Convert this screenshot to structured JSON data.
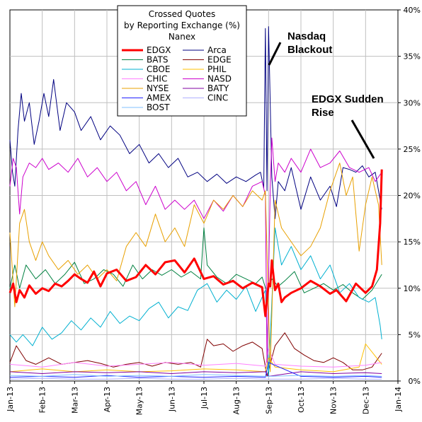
{
  "chart_data": {
    "type": "line",
    "title": [
      "Crossed Quotes",
      "by Reporting Exchange (%)",
      "Nanex"
    ],
    "ylim": [
      0,
      40
    ],
    "y_ticks": [
      "0%",
      "5%",
      "10%",
      "15%",
      "20%",
      "25%",
      "30%",
      "35%",
      "40%"
    ],
    "y_axis_side": "right",
    "x_ticks": [
      "Jan-13",
      "Feb-13",
      "Mar-13",
      "Apr-13",
      "May-13",
      "Jun-13",
      "Jul-13",
      "Aug-13",
      "Sep-13",
      "Oct-13",
      "Nov-13",
      "Dec-13",
      "Jan-14"
    ],
    "grid": true,
    "legend_placement": "top-center",
    "annotations": [
      {
        "lines": [
          "Nasdaq",
          "Blackout"
        ],
        "x": 8.15,
        "y": 38.5
      },
      {
        "lines": [
          "EDGX Sudden",
          "Rise"
        ],
        "x": 10.95,
        "y": 29.5
      }
    ],
    "series": [
      {
        "name": "EDGX",
        "color": "#ff0000",
        "width": 3,
        "x": [
          0,
          0.1,
          0.2,
          0.3,
          0.45,
          0.6,
          0.8,
          1.0,
          1.2,
          1.4,
          1.6,
          1.8,
          2.0,
          2.2,
          2.4,
          2.6,
          2.8,
          3.0,
          3.3,
          3.6,
          3.9,
          4.2,
          4.5,
          4.8,
          5.1,
          5.4,
          5.7,
          6.0,
          6.3,
          6.6,
          6.9,
          7.2,
          7.5,
          7.8,
          7.9,
          8.0,
          8.05,
          8.1,
          8.2,
          8.3,
          8.4,
          8.5,
          8.7,
          9.0,
          9.3,
          9.6,
          9.9,
          10.1,
          10.4,
          10.7,
          11.0,
          11.2,
          11.35,
          11.45,
          11.5
        ],
        "y": [
          9.5,
          10.5,
          8.5,
          9.8,
          9.0,
          10.3,
          9.4,
          10.0,
          9.7,
          10.5,
          10.2,
          10.8,
          11.5,
          11.0,
          10.6,
          11.8,
          10.2,
          11.6,
          12.0,
          10.8,
          11.2,
          12.5,
          11.5,
          12.8,
          13.0,
          11.7,
          13.2,
          11.0,
          11.3,
          10.4,
          10.8,
          10.0,
          10.6,
          10.1,
          7.0,
          10.5,
          10.2,
          13.0,
          9.8,
          10.5,
          8.5,
          9.0,
          9.5,
          10.0,
          10.8,
          10.2,
          9.4,
          9.8,
          8.6,
          10.5,
          9.5,
          10.2,
          12.0,
          17.0,
          22.8
        ]
      },
      {
        "name": "Arca",
        "color": "#000080",
        "width": 1,
        "x": [
          0,
          0.08,
          0.15,
          0.25,
          0.35,
          0.45,
          0.6,
          0.75,
          0.9,
          1.05,
          1.2,
          1.35,
          1.55,
          1.75,
          2.0,
          2.2,
          2.5,
          2.8,
          3.1,
          3.4,
          3.7,
          4.0,
          4.3,
          4.6,
          4.9,
          5.2,
          5.5,
          5.8,
          6.1,
          6.4,
          6.7,
          7.0,
          7.3,
          7.6,
          7.75,
          7.85,
          7.9,
          7.95,
          8.0,
          8.1,
          8.2,
          8.3,
          8.5,
          8.7,
          9.0,
          9.3,
          9.6,
          9.9,
          10.1,
          10.3,
          10.5,
          10.7,
          10.9,
          11.1,
          11.3,
          11.5
        ],
        "y": [
          26,
          22.5,
          21,
          27,
          31,
          28,
          30,
          25.5,
          28,
          31,
          28.5,
          32.5,
          27,
          30,
          29,
          27,
          28.5,
          26,
          27.5,
          26.5,
          24.5,
          25.5,
          23.5,
          24.5,
          23,
          24,
          22,
          22.5,
          21.5,
          22.3,
          21.3,
          22,
          21.5,
          22.2,
          22.5,
          20.8,
          38,
          20.5,
          38.2,
          22,
          17.5,
          21.5,
          20.5,
          23,
          18.5,
          22,
          19.5,
          21,
          18.8,
          23,
          22.8,
          22.5,
          23.2,
          22.0,
          22.5,
          18.5
        ]
      },
      {
        "name": "BATS",
        "color": "#008040",
        "width": 1,
        "x": [
          0,
          0.15,
          0.3,
          0.5,
          0.8,
          1.1,
          1.4,
          1.7,
          2.0,
          2.3,
          2.6,
          2.9,
          3.2,
          3.5,
          3.8,
          4.1,
          4.4,
          4.7,
          5.0,
          5.3,
          5.6,
          5.9,
          6.0,
          6.1,
          6.4,
          6.7,
          7.0,
          7.3,
          7.6,
          7.8,
          7.95,
          8.1,
          8.3,
          8.5,
          8.8,
          9.1,
          9.4,
          9.7,
          10.0,
          10.3,
          10.6,
          10.9,
          11.2,
          11.5
        ],
        "y": [
          10,
          12.5,
          10,
          12.5,
          11,
          12,
          10.5,
          11.5,
          12.8,
          10.5,
          11,
          12,
          11.5,
          10.2,
          12.5,
          11,
          12,
          11.4,
          12,
          11.2,
          11.8,
          11,
          16.5,
          12.5,
          11.2,
          10.5,
          11.5,
          11,
          10.5,
          11.2,
          9.5,
          11,
          10.2,
          10.8,
          11.8,
          9.5,
          10,
          10.5,
          9.8,
          10.4,
          9.5,
          8.8,
          9.8,
          11.5
        ]
      },
      {
        "name": "EDGE",
        "color": "#800000",
        "width": 1,
        "x": [
          0,
          0.2,
          0.5,
          0.8,
          1.2,
          1.6,
          2.0,
          2.4,
          2.8,
          3.2,
          3.6,
          4.0,
          4.4,
          4.8,
          5.2,
          5.6,
          5.9,
          6.1,
          6.3,
          6.6,
          6.9,
          7.2,
          7.5,
          7.8,
          7.95,
          8.2,
          8.5,
          8.8,
          9.1,
          9.4,
          9.7,
          10.0,
          10.3,
          10.6,
          10.9,
          11.2,
          11.5
        ],
        "y": [
          2,
          3.8,
          2.2,
          1.8,
          2.5,
          1.8,
          2,
          2.2,
          1.9,
          1.5,
          1.8,
          2,
          1.6,
          2,
          1.8,
          2,
          1.5,
          4.5,
          3.8,
          4,
          3.2,
          3.8,
          4.2,
          3.5,
          0.5,
          3.8,
          5.2,
          3.5,
          2.8,
          2.2,
          2,
          2.5,
          2,
          1.2,
          1.2,
          1.5,
          3
        ]
      },
      {
        "name": "CBOE",
        "color": "#00b0d0",
        "width": 1,
        "x": [
          0,
          0.2,
          0.4,
          0.7,
          1.0,
          1.3,
          1.6,
          1.9,
          2.2,
          2.5,
          2.8,
          3.1,
          3.4,
          3.7,
          4.0,
          4.3,
          4.6,
          4.9,
          5.2,
          5.5,
          5.8,
          6.1,
          6.4,
          6.7,
          7.0,
          7.3,
          7.6,
          7.9,
          8.0,
          8.2,
          8.4,
          8.7,
          9.0,
          9.3,
          9.6,
          9.9,
          10.2,
          10.5,
          10.8,
          11.1,
          11.3,
          11.45,
          11.5
        ],
        "y": [
          5,
          4.2,
          5,
          3.8,
          5.8,
          4.5,
          5.2,
          6.5,
          5.5,
          6.8,
          5.8,
          7.5,
          6.2,
          7,
          6.5,
          7.8,
          8.5,
          6.8,
          8,
          7.6,
          9.8,
          10.5,
          8.5,
          9.8,
          8.8,
          10.2,
          7.5,
          9.8,
          0.5,
          16.5,
          12.5,
          14.5,
          12,
          13.5,
          11,
          12.5,
          9.5,
          10.5,
          9,
          8.5,
          9,
          6,
          4.5
        ]
      },
      {
        "name": "PHIL",
        "color": "#ffc000",
        "width": 1,
        "x": [
          0,
          1,
          2,
          3,
          4,
          5,
          6,
          7,
          7.9,
          8.0,
          8.2,
          9,
          10,
          10.8,
          11,
          11.5
        ],
        "y": [
          1,
          1.3,
          1,
          1.2,
          1,
          1.1,
          1.3,
          1.2,
          1,
          2.5,
          1.5,
          1.2,
          1,
          1.5,
          4,
          1.8
        ]
      },
      {
        "name": "CHIC",
        "color": "#ff80ff",
        "width": 1,
        "x": [
          0,
          1,
          2,
          3,
          4,
          5,
          6,
          7,
          7.9,
          8.0,
          8.2,
          9,
          10,
          11,
          11.5
        ],
        "y": [
          1.8,
          1.5,
          2,
          1.6,
          1.8,
          2,
          1.7,
          1.9,
          1.6,
          3.5,
          1.8,
          1.6,
          1.5,
          1.7,
          2
        ]
      },
      {
        "name": "NASD",
        "color": "#cc00cc",
        "width": 1,
        "x": [
          0,
          0.1,
          0.2,
          0.3,
          0.4,
          0.6,
          0.8,
          1.0,
          1.2,
          1.5,
          1.8,
          2.1,
          2.4,
          2.7,
          3.0,
          3.3,
          3.6,
          3.9,
          4.2,
          4.5,
          4.8,
          5.1,
          5.4,
          5.7,
          6.0,
          6.3,
          6.6,
          6.9,
          7.2,
          7.5,
          7.8,
          7.9,
          7.95,
          8.05,
          8.1,
          8.2,
          8.3,
          8.5,
          8.7,
          9.0,
          9.3,
          9.6,
          9.9,
          10.2,
          10.5,
          10.8,
          11.1,
          11.3,
          11.5
        ],
        "y": [
          21,
          24,
          23,
          18,
          22,
          23.5,
          23,
          24,
          22.8,
          23.5,
          22.5,
          24,
          22,
          23,
          21.5,
          22.5,
          20.5,
          21.5,
          19,
          21,
          18.5,
          19.5,
          18.5,
          19.5,
          17.5,
          19.5,
          18.3,
          20,
          18.8,
          21,
          21.5,
          20,
          2,
          20.5,
          26.2,
          21.5,
          23.5,
          22.5,
          24,
          22.5,
          25,
          23,
          23.5,
          24.8,
          23,
          22.5,
          23,
          21.5,
          22.5
        ]
      },
      {
        "name": "NYSE",
        "color": "#e8a000",
        "width": 1,
        "x": [
          0,
          0.15,
          0.3,
          0.45,
          0.6,
          0.8,
          1.0,
          1.2,
          1.5,
          1.8,
          2.1,
          2.4,
          2.7,
          3.0,
          3.3,
          3.6,
          3.9,
          4.2,
          4.5,
          4.8,
          5.1,
          5.4,
          5.7,
          6.0,
          6.3,
          6.6,
          6.9,
          7.2,
          7.5,
          7.8,
          7.9,
          8.05,
          8.2,
          8.4,
          8.7,
          9.0,
          9.3,
          9.6,
          9.9,
          10.2,
          10.4,
          10.6,
          10.8,
          11.0,
          11.2,
          11.4,
          11.5
        ],
        "y": [
          16,
          8,
          17,
          18.5,
          15,
          13,
          15,
          13.5,
          12,
          13,
          11.5,
          12.5,
          11,
          12,
          10.8,
          14.5,
          16,
          14.5,
          18,
          15,
          16.5,
          14.5,
          19,
          17,
          19.5,
          18.5,
          20,
          18.8,
          20.5,
          19.5,
          20.5,
          1,
          19.5,
          16.5,
          15,
          13.5,
          14.5,
          16.5,
          20.5,
          23.5,
          20,
          22,
          14,
          19,
          22,
          19,
          12.5
        ]
      },
      {
        "name": "BATY",
        "color": "#8000a0",
        "width": 1,
        "x": [
          0,
          1,
          2,
          3,
          4,
          5,
          6,
          7,
          7.9,
          8.0,
          9,
          10,
          11,
          11.5
        ],
        "y": [
          1,
          0.8,
          1,
          0.9,
          1,
          0.8,
          1,
          0.9,
          1,
          0.5,
          1,
          0.8,
          0.9,
          0.8
        ]
      },
      {
        "name": "AMEX",
        "color": "#2020ff",
        "width": 1,
        "x": [
          0,
          1,
          2,
          3,
          4,
          5,
          6,
          7,
          7.9,
          8.0,
          9,
          10,
          11,
          11.5
        ],
        "y": [
          0.4,
          0.5,
          0.4,
          0.6,
          0.4,
          0.5,
          0.4,
          0.5,
          0.4,
          2.0,
          0.5,
          0.4,
          0.5,
          0.4
        ]
      },
      {
        "name": "CINC",
        "color": "#b0b0ff",
        "width": 1,
        "x": [
          0,
          1,
          2,
          3,
          4,
          5,
          6,
          7,
          8,
          9,
          10,
          11,
          11.5
        ],
        "y": [
          0.2,
          0.3,
          0.2,
          0.2,
          0.3,
          0.2,
          0.2,
          0.3,
          0.2,
          0.2,
          0.3,
          0.2,
          0.2
        ]
      },
      {
        "name": "BOST",
        "color": "#80c0ff",
        "width": 1,
        "x": [
          0,
          1,
          2,
          3,
          4,
          5,
          6,
          7,
          8,
          9,
          10,
          11,
          11.5
        ],
        "y": [
          0.6,
          0.5,
          0.7,
          0.5,
          0.6,
          0.5,
          0.7,
          0.6,
          0.5,
          0.6,
          0.5,
          0.6,
          0.5
        ]
      }
    ]
  }
}
